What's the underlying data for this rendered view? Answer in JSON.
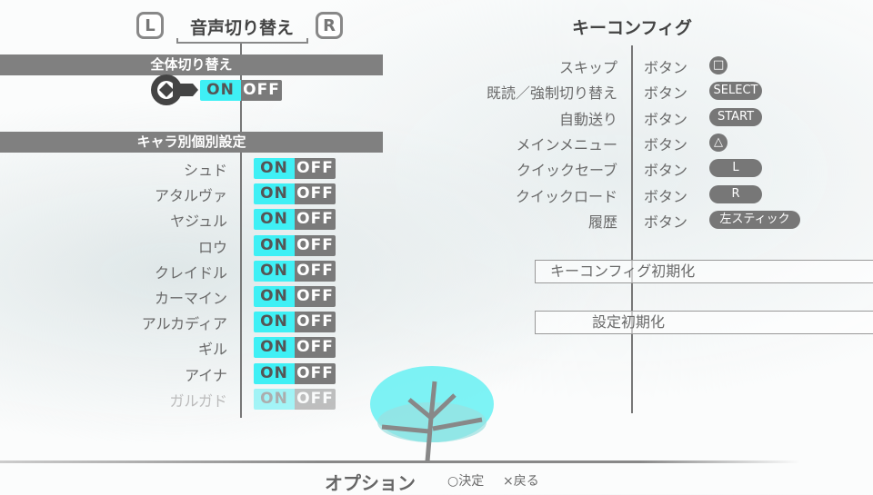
{
  "header": {
    "left_tab": "L",
    "right_tab": "R",
    "title": "音声切り替え",
    "right_title": "キーコンフィグ"
  },
  "global": {
    "heading": "全体切り替え",
    "on": "ON",
    "off": "OFF",
    "selected": "ON"
  },
  "characters": {
    "heading": "キャラ別個別設定",
    "on": "ON",
    "off": "OFF",
    "items": [
      {
        "name": "シュド",
        "state": "ON",
        "enabled": true
      },
      {
        "name": "アタルヴァ",
        "state": "ON",
        "enabled": true
      },
      {
        "name": "ヤジュル",
        "state": "ON",
        "enabled": true
      },
      {
        "name": "ロウ",
        "state": "ON",
        "enabled": true
      },
      {
        "name": "クレイドル",
        "state": "ON",
        "enabled": true
      },
      {
        "name": "カーマイン",
        "state": "ON",
        "enabled": true
      },
      {
        "name": "アルカディア",
        "state": "ON",
        "enabled": true
      },
      {
        "name": "ギル",
        "state": "ON",
        "enabled": true
      },
      {
        "name": "アイナ",
        "state": "ON",
        "enabled": true
      },
      {
        "name": "ガルガド",
        "state": "ON",
        "enabled": false
      }
    ]
  },
  "keyconfig": {
    "button_word": "ボタン",
    "items": [
      {
        "label": "スキップ",
        "key": "□"
      },
      {
        "label": "既読／強制切り替え",
        "key": "SELECT"
      },
      {
        "label": "自動送り",
        "key": "START"
      },
      {
        "label": "メインメニュー",
        "key": "△"
      },
      {
        "label": "クイックセーブ",
        "key": "L"
      },
      {
        "label": "クイックロード",
        "key": "R"
      },
      {
        "label": "履歴",
        "key": "左スティック"
      }
    ],
    "reset_keys": "キーコンフィグ初期化",
    "reset_settings": "設定初期化"
  },
  "footer": {
    "title": "オプション",
    "confirm": "○決定",
    "back": "×戻る"
  },
  "colors": {
    "accent": "#3ff0f5",
    "bar": "#808080"
  }
}
